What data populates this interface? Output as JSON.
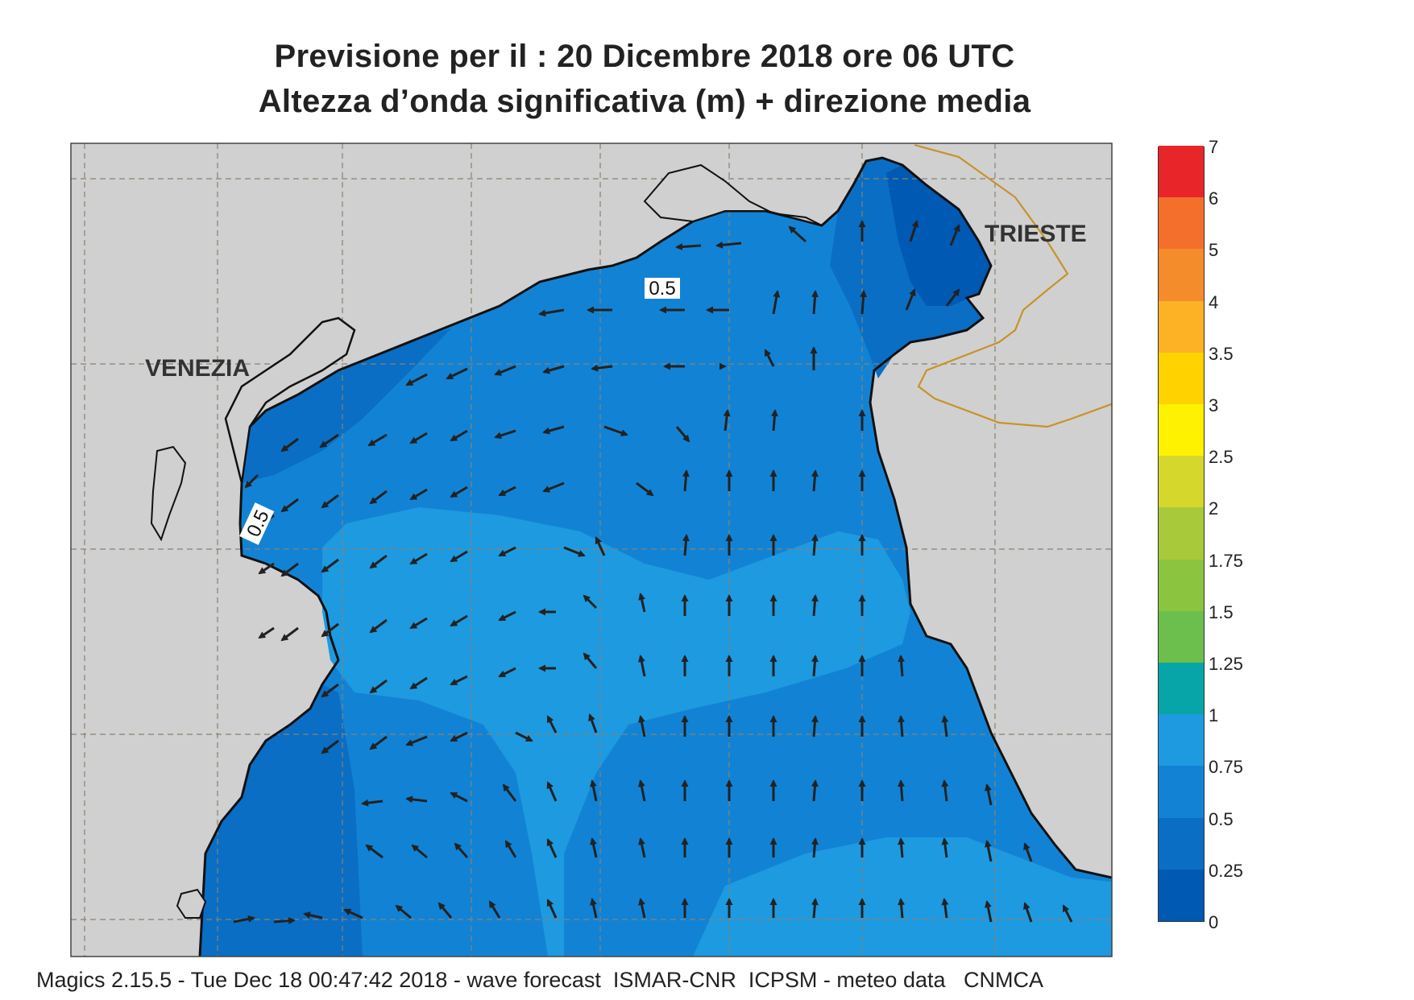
{
  "title_line1": "Previsione per il  :  20 Dicembre  2018   ore 06 UTC",
  "title_line2": "Altezza d’onda significativa (m) + direzione media",
  "places": {
    "venezia": "VENEZIA",
    "trieste": "TRIESTE"
  },
  "contour_labels": [
    "0.5",
    "0.5"
  ],
  "legend": {
    "levels": [
      "0",
      "0.25",
      "0.5",
      "0.75",
      "1",
      "1.25",
      "1.5",
      "1.75",
      "2",
      "2.5",
      "3",
      "3.5",
      "4",
      "5",
      "6",
      "7"
    ],
    "colors": [
      "#0059b3",
      "#0a6ec4",
      "#1283d4",
      "#1e9ae0",
      "#08a5a8",
      "#6cbf4c",
      "#8bc540",
      "#a8ca3a",
      "#d6d72c",
      "#fff200",
      "#ffd200",
      "#fcb224",
      "#f58c2c",
      "#f46f2c",
      "#e8262a",
      "#e8136a"
    ]
  },
  "colors": {
    "land": "#d0d0d0",
    "grid": "#8a8170",
    "sea_dark": "#0a6ec4",
    "sea_mid": "#1283d4",
    "sea_light": "#1e9ae0",
    "border": "#c8922a"
  },
  "footer": "Magics 2.15.5 - Tue Dec 18 00:47:42 2018 - wave forecast  ISMAR-CNR  ICPSM - meteo data   CNMCA"
}
